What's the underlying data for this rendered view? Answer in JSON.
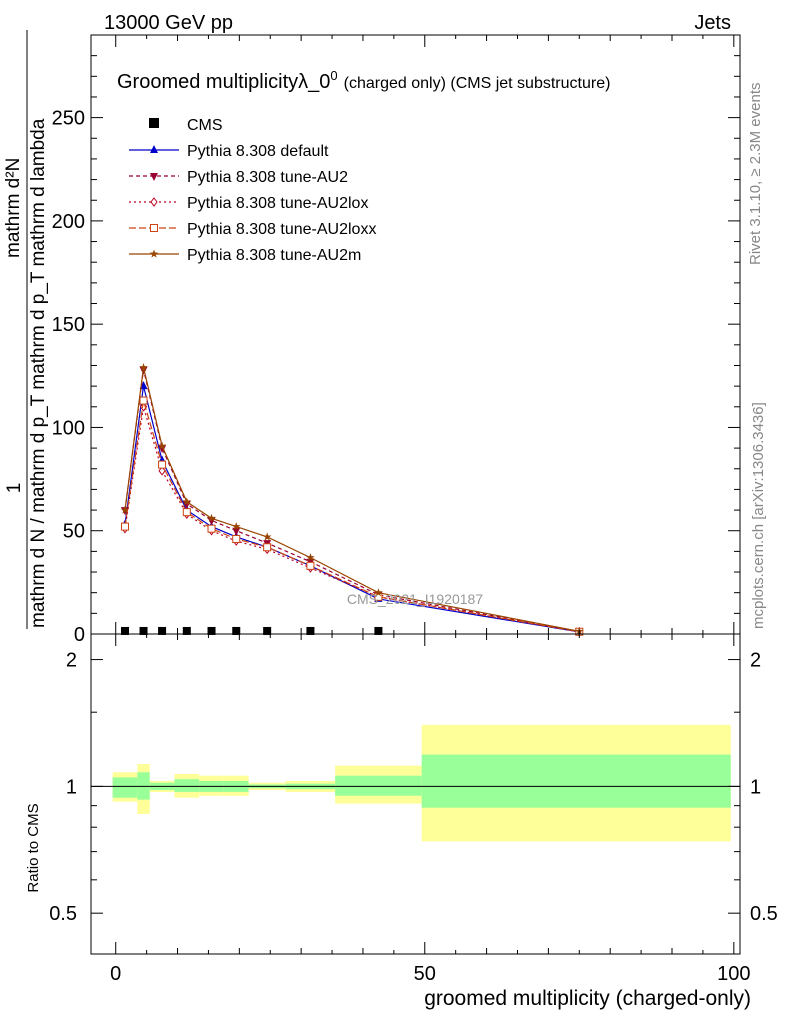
{
  "header": {
    "energy": "13000 GeV pp",
    "process": "Jets"
  },
  "side": {
    "rivet": "Rivet 3.1.10, ≥ 2.3M events",
    "mcplots": "mcplots.cern.ch [arXiv:1306.3436]"
  },
  "chart_data": {
    "type": "line",
    "title": "Groomed multiplicityλ_0",
    "title_sup": "0",
    "title_suffix": "(charged only) (CMS jet substructure)",
    "watermark": "CMS_2021_I1920187",
    "xlabel": "groomed multiplicity (charged-only)",
    "ylabel_main_num": "1",
    "ylabel_main_den": "mathrm d N / mathrm d p_T mathrm d p_T mathrm d lambda",
    "ylabel_main_top": "mathrm d²N",
    "ylabel_ratio": "Ratio to CMS",
    "xlim": [
      -4,
      101
    ],
    "ylim": [
      0,
      290
    ],
    "ratio_ylim": [
      0.4,
      2.3
    ],
    "x_ticks": [
      0,
      50,
      100
    ],
    "y_ticks": [
      0,
      50,
      100,
      150,
      200,
      250
    ],
    "ratio_ticks": [
      0.5,
      1,
      2
    ],
    "x": [
      1.5,
      4.5,
      7.5,
      11.5,
      15.5,
      19.5,
      24.5,
      31.5,
      42.5,
      75
    ],
    "cms": [
      0.5,
      0.5,
      0.5,
      0.5,
      0.5,
      0.5,
      0.5,
      0.5,
      0.5
    ],
    "cms_x": [
      1.5,
      4.5,
      7.5,
      11.5,
      15.5,
      19.5,
      24.5,
      31.5,
      42.5
    ],
    "series": [
      {
        "name": "Pythia 8.308 default",
        "color": "#0000cc",
        "dash": "",
        "marker": "triangle-up",
        "values": [
          53,
          120,
          84,
          60,
          52,
          47,
          42,
          33,
          17,
          1
        ]
      },
      {
        "name": "Pythia 8.308 tune-AU2",
        "color": "#990033",
        "dash": "4,3",
        "marker": "triangle-down",
        "values": [
          60,
          128,
          90,
          63,
          55,
          50,
          44,
          35,
          19,
          1.2
        ]
      },
      {
        "name": "Pythia 8.308 tune-AU2lox",
        "color": "#bb0022",
        "dash": "2,3",
        "marker": "diamond",
        "values": [
          51,
          110,
          79,
          58,
          50,
          45,
          41,
          32,
          18,
          1
        ]
      },
      {
        "name": "Pythia 8.308 tune-AU2loxx",
        "color": "#cc4411",
        "dash": "7,3",
        "marker": "square",
        "values": [
          52,
          113,
          82,
          59,
          51,
          46,
          42,
          33,
          18,
          1.1
        ]
      },
      {
        "name": "Pythia 8.308 tune-AU2m",
        "color": "#994400",
        "dash": "",
        "marker": "star",
        "values": [
          60,
          129,
          91,
          64,
          56,
          52,
          47,
          37,
          20,
          1.3
        ]
      }
    ],
    "cms_legend": "CMS",
    "ratio_bands": [
      {
        "x0": -0.5,
        "x1": 3.5,
        "green": [
          0.94,
          1.05
        ],
        "yellow": [
          0.92,
          1.08
        ]
      },
      {
        "x0": 3.5,
        "x1": 5.5,
        "green": [
          0.93,
          1.08
        ],
        "yellow": [
          0.86,
          1.13
        ]
      },
      {
        "x0": 5.5,
        "x1": 9.5,
        "green": [
          0.98,
          1.02
        ],
        "yellow": [
          0.97,
          1.03
        ]
      },
      {
        "x0": 9.5,
        "x1": 13.5,
        "green": [
          0.97,
          1.04
        ],
        "yellow": [
          0.94,
          1.07
        ]
      },
      {
        "x0": 13.5,
        "x1": 17.5,
        "green": [
          0.97,
          1.03
        ],
        "yellow": [
          0.95,
          1.06
        ]
      },
      {
        "x0": 17.5,
        "x1": 21.5,
        "green": [
          0.97,
          1.03
        ],
        "yellow": [
          0.95,
          1.06
        ]
      },
      {
        "x0": 21.5,
        "x1": 27.5,
        "green": [
          0.99,
          1.01
        ],
        "yellow": [
          0.98,
          1.02
        ]
      },
      {
        "x0": 27.5,
        "x1": 35.5,
        "green": [
          0.985,
          1.015
        ],
        "yellow": [
          0.97,
          1.03
        ]
      },
      {
        "x0": 35.5,
        "x1": 49.5,
        "green": [
          0.95,
          1.06
        ],
        "yellow": [
          0.91,
          1.12
        ]
      },
      {
        "x0": 49.5,
        "x1": 99.5,
        "green": [
          0.89,
          1.19
        ],
        "yellow": [
          0.74,
          1.4
        ]
      }
    ],
    "grid": false,
    "legend_position": "top-left"
  }
}
